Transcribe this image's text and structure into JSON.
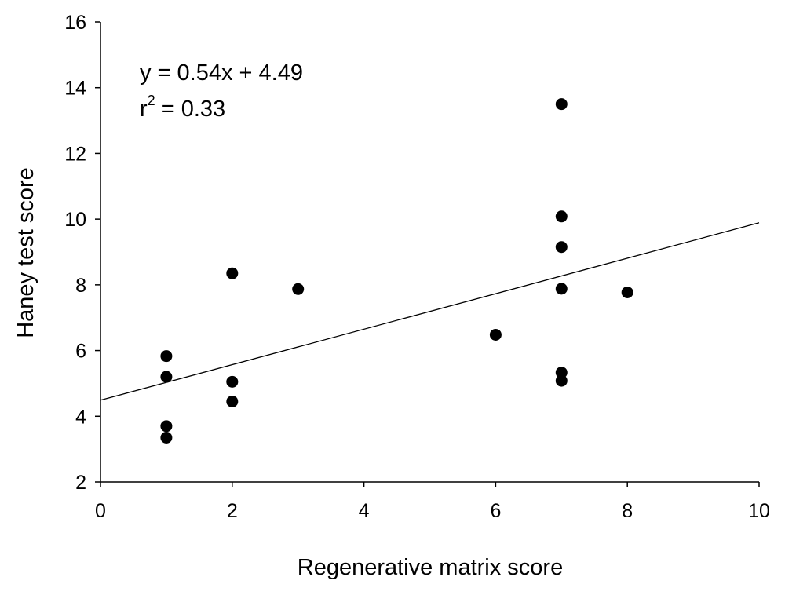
{
  "chart_data": {
    "type": "scatter",
    "xlabel": "Regenerative matrix score",
    "ylabel": "Haney test score",
    "xlim": [
      0,
      10
    ],
    "ylim": [
      2,
      16
    ],
    "xticks": [
      "0",
      "2",
      "4",
      "6",
      "8",
      "10"
    ],
    "yticks": [
      "2",
      "4",
      "6",
      "8",
      "10",
      "12",
      "14",
      "16"
    ],
    "grid": false,
    "legend": "none",
    "marker_color": "#000000",
    "series": [
      {
        "points": [
          {
            "x": 1,
            "y": 5.83
          },
          {
            "x": 1,
            "y": 5.2
          },
          {
            "x": 1,
            "y": 3.7
          },
          {
            "x": 1,
            "y": 3.35
          },
          {
            "x": 2,
            "y": 8.35
          },
          {
            "x": 2,
            "y": 5.05
          },
          {
            "x": 2,
            "y": 4.45
          },
          {
            "x": 3,
            "y": 7.87
          },
          {
            "x": 6,
            "y": 6.48
          },
          {
            "x": 7,
            "y": 13.5
          },
          {
            "x": 7,
            "y": 10.08
          },
          {
            "x": 7,
            "y": 9.15
          },
          {
            "x": 7,
            "y": 7.88
          },
          {
            "x": 7,
            "y": 5.33
          },
          {
            "x": 7,
            "y": 5.08
          },
          {
            "x": 8,
            "y": 7.77
          }
        ]
      }
    ],
    "trendline": {
      "slope": 0.54,
      "intercept": 4.49,
      "x_from": 0,
      "x_to": 10
    },
    "annotations": {
      "equation": "y = 0.54x + 4.49",
      "r2_prefix": "r",
      "r2_sup": "2",
      "r2_value": " = 0.33"
    }
  }
}
